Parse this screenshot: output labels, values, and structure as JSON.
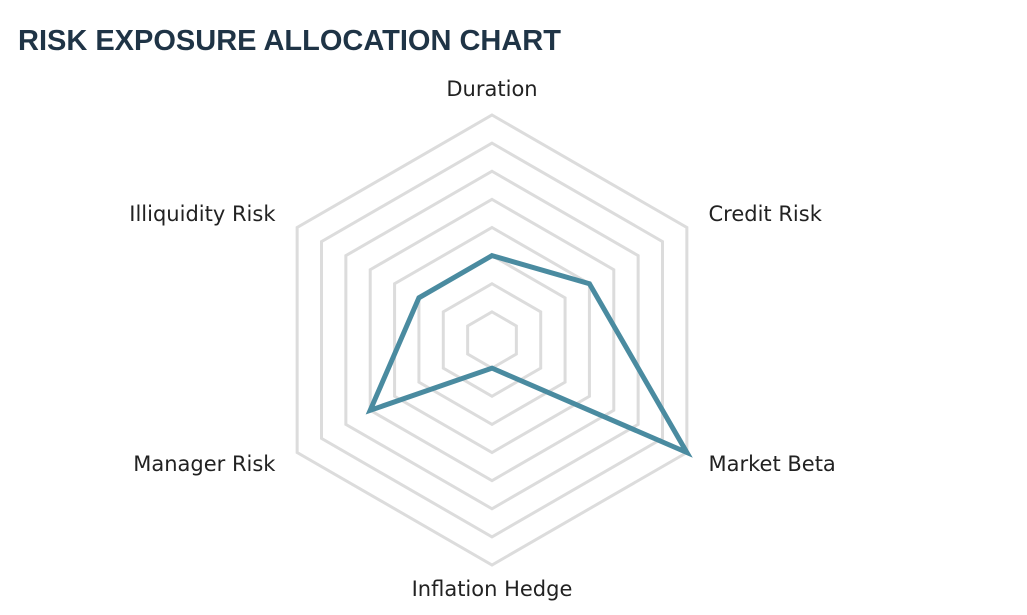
{
  "chart_data": {
    "type": "radar",
    "title": "RISK EXPOSURE ALLOCATION CHART",
    "categories": [
      "Duration",
      "Credit Risk",
      "Market Beta",
      "Inflation Hedge",
      "Manager Risk",
      "Illiquidity Risk"
    ],
    "values": [
      3,
      4,
      8,
      1,
      5,
      3
    ],
    "color": "#4a8ba0",
    "rlim": [
      0,
      8
    ],
    "rticks": [
      1,
      2,
      3,
      4,
      5,
      6,
      7,
      8
    ],
    "grid": true
  }
}
